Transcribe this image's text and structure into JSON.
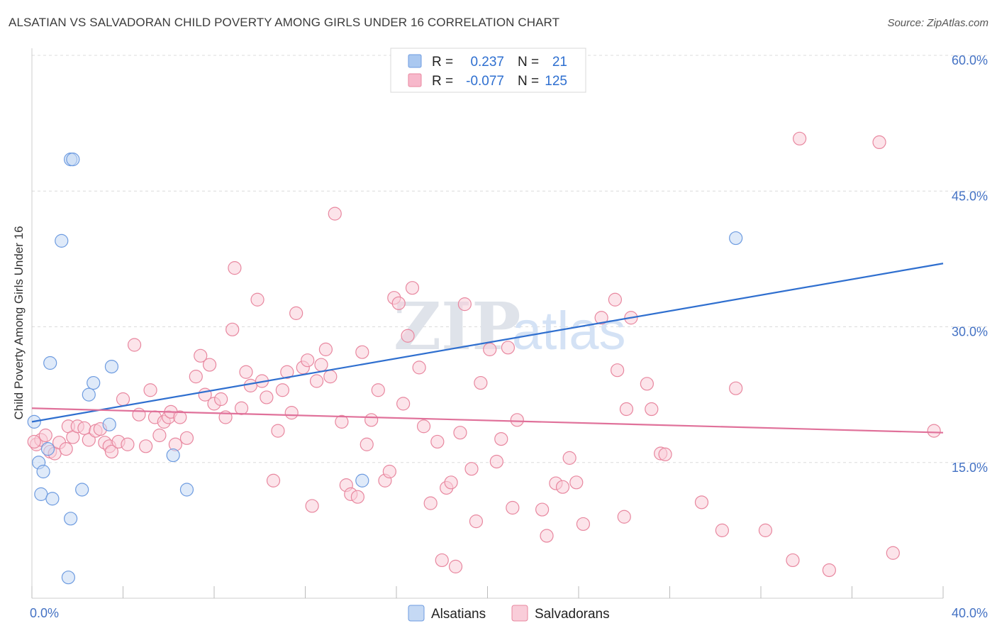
{
  "title": "ALSATIAN VS SALVADORAN CHILD POVERTY AMONG GIRLS UNDER 16 CORRELATION CHART",
  "source": "Source: ZipAtlas.com",
  "watermark": {
    "zip": "ZIP",
    "atlas": "atlas"
  },
  "legend_top": [
    {
      "r_label": "R =",
      "r_value": "0.237",
      "n_label": "N =",
      "n_value": "21",
      "color": "#aac8f0",
      "stroke": "#6d9be0"
    },
    {
      "r_label": "R =",
      "r_value": "-0.077",
      "n_label": "N =",
      "n_value": "125",
      "color": "#f7b8cb",
      "stroke": "#e8879f"
    }
  ],
  "legend_bottom": [
    {
      "label": "Alsatians",
      "color": "#c5d9f4",
      "stroke": "#6d9be0"
    },
    {
      "label": "Salvadorans",
      "color": "#f9cdd9",
      "stroke": "#e8879f"
    }
  ],
  "chart_data": {
    "type": "scatter",
    "title": "ALSATIAN VS SALVADORAN CHILD POVERTY AMONG GIRLS UNDER 16 CORRELATION CHART",
    "xlabel": "",
    "ylabel": "Child Poverty Among Girls Under 16",
    "xlim": [
      0,
      40
    ],
    "ylim": [
      0,
      60
    ],
    "x_ticks": [
      "0.0%",
      "40.0%"
    ],
    "y_ticks": [
      {
        "value": 15,
        "label": "15.0%"
      },
      {
        "value": 30,
        "label": "30.0%"
      },
      {
        "value": 45,
        "label": "45.0%"
      },
      {
        "value": 60,
        "label": "60.0%"
      }
    ],
    "grid": true,
    "series": [
      {
        "name": "Alsatians",
        "color": "#6d9be0",
        "fill": "#c5d9f4",
        "line": "#2f6fcf",
        "trend": [
          [
            0,
            19.5
          ],
          [
            40,
            37.0
          ]
        ],
        "points": [
          [
            0.1,
            19.5
          ],
          [
            0.3,
            15.0
          ],
          [
            0.5,
            14.0
          ],
          [
            0.4,
            11.5
          ],
          [
            0.7,
            16.5
          ],
          [
            0.9,
            11.0
          ],
          [
            0.8,
            26.0
          ],
          [
            1.3,
            39.5
          ],
          [
            1.7,
            48.5
          ],
          [
            1.8,
            48.5
          ],
          [
            1.7,
            8.8
          ],
          [
            1.6,
            2.3
          ],
          [
            2.2,
            12.0
          ],
          [
            2.5,
            22.5
          ],
          [
            2.7,
            23.8
          ],
          [
            3.4,
            19.2
          ],
          [
            3.5,
            25.6
          ],
          [
            6.2,
            15.8
          ],
          [
            6.8,
            12.0
          ],
          [
            14.5,
            13.0
          ],
          [
            30.9,
            39.8
          ]
        ]
      },
      {
        "name": "Salvadorans",
        "color": "#e8879f",
        "fill": "#f9cdd9",
        "line": "#e0719a",
        "trend": [
          [
            0,
            21.0
          ],
          [
            40,
            18.3
          ]
        ],
        "points": [
          [
            0.2,
            17.0
          ],
          [
            0.4,
            17.5
          ],
          [
            0.6,
            18.0
          ],
          [
            0.8,
            16.2
          ],
          [
            1.0,
            16.0
          ],
          [
            1.2,
            17.2
          ],
          [
            1.5,
            16.5
          ],
          [
            1.6,
            19.0
          ],
          [
            1.8,
            17.8
          ],
          [
            2.0,
            19.0
          ],
          [
            2.3,
            18.8
          ],
          [
            2.5,
            17.5
          ],
          [
            2.8,
            18.5
          ],
          [
            3.0,
            18.7
          ],
          [
            3.2,
            17.2
          ],
          [
            3.4,
            16.8
          ],
          [
            3.5,
            16.2
          ],
          [
            3.8,
            17.3
          ],
          [
            4.0,
            22.0
          ],
          [
            4.2,
            17.0
          ],
          [
            4.5,
            28.0
          ],
          [
            4.7,
            20.3
          ],
          [
            5.0,
            16.8
          ],
          [
            5.2,
            23.0
          ],
          [
            5.4,
            20.0
          ],
          [
            5.6,
            18.0
          ],
          [
            5.8,
            19.5
          ],
          [
            6.0,
            20.0
          ],
          [
            6.1,
            20.6
          ],
          [
            6.3,
            17.0
          ],
          [
            6.5,
            20.0
          ],
          [
            6.8,
            17.7
          ],
          [
            7.2,
            24.5
          ],
          [
            7.4,
            26.8
          ],
          [
            7.6,
            22.5
          ],
          [
            7.8,
            25.8
          ],
          [
            8.0,
            21.5
          ],
          [
            8.3,
            22.0
          ],
          [
            8.5,
            20.0
          ],
          [
            8.8,
            29.7
          ],
          [
            8.9,
            36.5
          ],
          [
            9.2,
            21.0
          ],
          [
            9.4,
            25.0
          ],
          [
            9.6,
            23.5
          ],
          [
            9.9,
            33.0
          ],
          [
            10.1,
            24.0
          ],
          [
            10.3,
            22.2
          ],
          [
            10.6,
            13.0
          ],
          [
            10.8,
            18.5
          ],
          [
            11.0,
            23.0
          ],
          [
            11.2,
            25.0
          ],
          [
            11.4,
            20.5
          ],
          [
            11.6,
            31.5
          ],
          [
            11.9,
            25.5
          ],
          [
            12.1,
            26.3
          ],
          [
            12.3,
            10.2
          ],
          [
            12.5,
            24.0
          ],
          [
            12.7,
            25.8
          ],
          [
            12.9,
            27.5
          ],
          [
            13.1,
            24.5
          ],
          [
            13.3,
            42.5
          ],
          [
            13.6,
            19.5
          ],
          [
            13.8,
            12.5
          ],
          [
            14.0,
            11.5
          ],
          [
            14.3,
            11.2
          ],
          [
            14.5,
            27.2
          ],
          [
            14.7,
            17.0
          ],
          [
            14.9,
            19.7
          ],
          [
            15.2,
            23.0
          ],
          [
            15.5,
            13.0
          ],
          [
            15.7,
            14.0
          ],
          [
            15.9,
            33.2
          ],
          [
            16.1,
            32.6
          ],
          [
            16.3,
            21.5
          ],
          [
            16.5,
            29.0
          ],
          [
            16.7,
            34.3
          ],
          [
            17.0,
            25.5
          ],
          [
            17.2,
            19.0
          ],
          [
            17.5,
            10.5
          ],
          [
            17.8,
            17.3
          ],
          [
            18.0,
            4.2
          ],
          [
            18.2,
            12.2
          ],
          [
            18.4,
            12.8
          ],
          [
            18.6,
            3.5
          ],
          [
            18.8,
            18.3
          ],
          [
            19.0,
            32.5
          ],
          [
            19.3,
            14.3
          ],
          [
            19.5,
            8.5
          ],
          [
            19.7,
            23.8
          ],
          [
            20.1,
            27.5
          ],
          [
            20.4,
            15.1
          ],
          [
            20.6,
            17.6
          ],
          [
            20.9,
            27.7
          ],
          [
            21.1,
            10.0
          ],
          [
            21.3,
            19.7
          ],
          [
            22.4,
            9.8
          ],
          [
            22.6,
            6.9
          ],
          [
            23.0,
            12.7
          ],
          [
            23.3,
            12.3
          ],
          [
            23.6,
            15.5
          ],
          [
            23.9,
            12.8
          ],
          [
            24.2,
            8.2
          ],
          [
            25.0,
            31.0
          ],
          [
            25.6,
            33.0
          ],
          [
            25.7,
            25.2
          ],
          [
            26.0,
            9.0
          ],
          [
            26.1,
            20.9
          ],
          [
            26.3,
            31.0
          ],
          [
            27.0,
            23.7
          ],
          [
            27.2,
            20.9
          ],
          [
            27.6,
            16.0
          ],
          [
            27.8,
            15.9
          ],
          [
            29.4,
            10.6
          ],
          [
            30.3,
            7.5
          ],
          [
            30.9,
            23.2
          ],
          [
            32.2,
            7.5
          ],
          [
            33.4,
            4.2
          ],
          [
            33.7,
            50.8
          ],
          [
            35.0,
            3.1
          ],
          [
            37.2,
            50.4
          ],
          [
            37.8,
            5.0
          ],
          [
            39.6,
            18.5
          ],
          [
            0.1,
            17.3
          ]
        ]
      }
    ]
  }
}
